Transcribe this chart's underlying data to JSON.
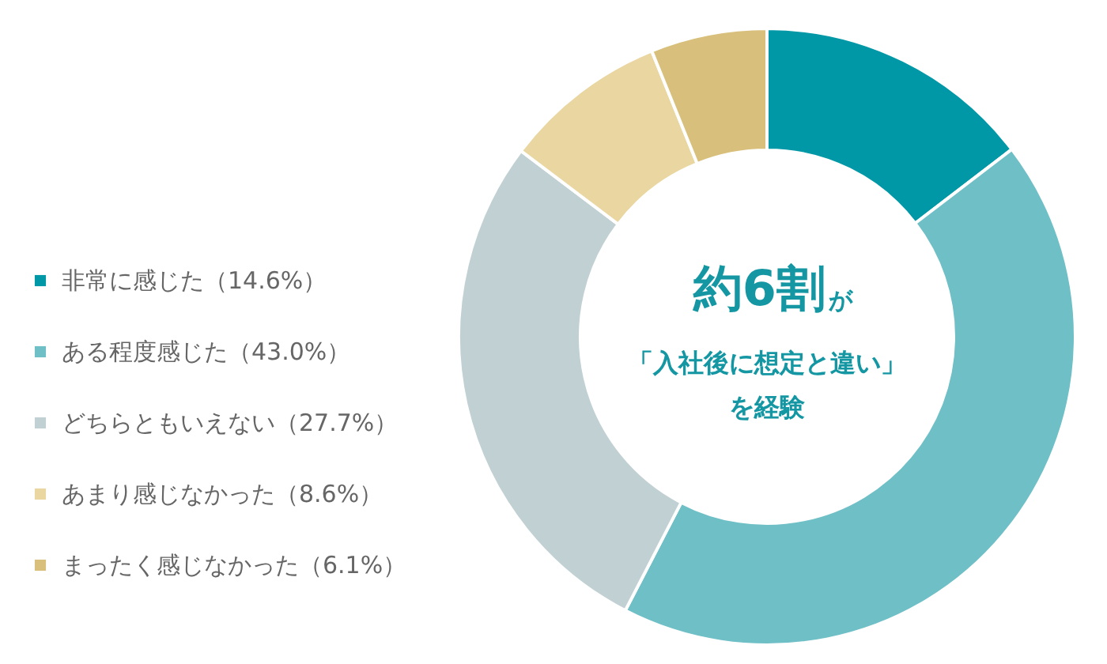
{
  "chart_data": {
    "type": "donut",
    "categories": [
      "非常に感じた（14.6%）",
      "ある程度感じた（43.0%）",
      "どちらともいえない（27.7%）",
      "あまり感じなかった（8.6%）",
      "まったく感じなかった（6.1%）"
    ],
    "values": [
      14.6,
      43.0,
      27.7,
      8.6,
      6.1
    ],
    "colors": [
      "#0098a6",
      "#6fbfc6",
      "#c0d0d3",
      "#e9d6a0",
      "#d8c07c"
    ],
    "legend": "left",
    "annotations": [
      "約6割",
      "が",
      "「入社後に想定と違い」",
      "を経験"
    ]
  }
}
